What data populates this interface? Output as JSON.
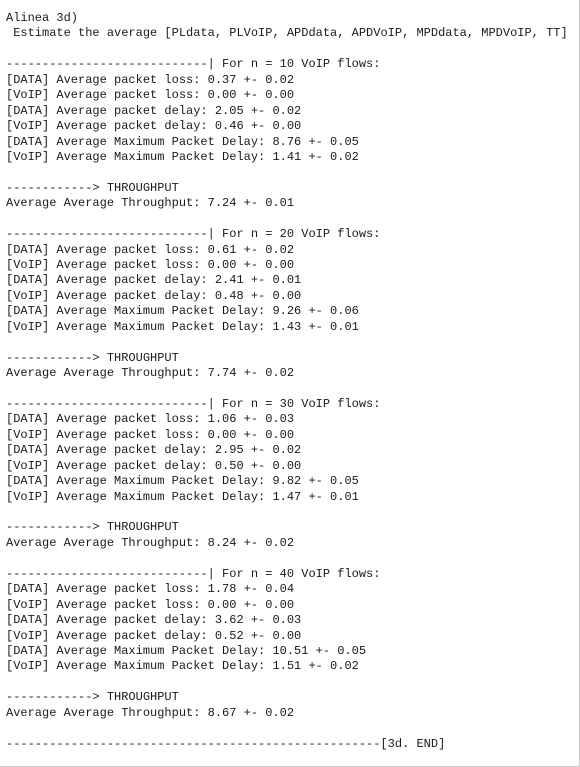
{
  "header": [
    "Alinea 3d)",
    " Estimate the average [PLdata, PLVoIP, APDdata, APDVoIP, MPDdata, MPDVoIP, TT]"
  ],
  "blocks": [
    {
      "heading": "----------------------------| For n = 10 VoIP flows:",
      "lines": [
        "[DATA] Average packet loss: 0.37 +- 0.02",
        "[VoIP] Average packet loss: 0.00 +- 0.00",
        "[DATA] Average packet delay: 2.05 +- 0.02",
        "[VoIP] Average packet delay: 0.46 +- 0.00",
        "[DATA] Average Maximum Packet Delay: 8.76 +- 0.05",
        "[VoIP] Average Maximum Packet Delay: 1.41 +- 0.02"
      ],
      "throughput_heading": "------------> THROUGHPUT",
      "throughput": "Average Average Throughput: 7.24 +- 0.01"
    },
    {
      "heading": "----------------------------| For n = 20 VoIP flows:",
      "lines": [
        "[DATA] Average packet loss: 0.61 +- 0.02",
        "[VoIP] Average packet loss: 0.00 +- 0.00",
        "[DATA] Average packet delay: 2.41 +- 0.01",
        "[VoIP] Average packet delay: 0.48 +- 0.00",
        "[DATA] Average Maximum Packet Delay: 9.26 +- 0.06",
        "[VoIP] Average Maximum Packet Delay: 1.43 +- 0.01"
      ],
      "throughput_heading": "------------> THROUGHPUT",
      "throughput": "Average Average Throughput: 7.74 +- 0.02"
    },
    {
      "heading": "----------------------------| For n = 30 VoIP flows:",
      "lines": [
        "[DATA] Average packet loss: 1.06 +- 0.03",
        "[VoIP] Average packet loss: 0.00 +- 0.00",
        "[DATA] Average packet delay: 2.95 +- 0.02",
        "[VoIP] Average packet delay: 0.50 +- 0.00",
        "[DATA] Average Maximum Packet Delay: 9.82 +- 0.05",
        "[VoIP] Average Maximum Packet Delay: 1.47 +- 0.01"
      ],
      "throughput_heading": "------------> THROUGHPUT",
      "throughput": "Average Average Throughput: 8.24 +- 0.02"
    },
    {
      "heading": "----------------------------| For n = 40 VoIP flows:",
      "lines": [
        "[DATA] Average packet loss: 1.78 +- 0.04",
        "[VoIP] Average packet loss: 0.00 +- 0.00",
        "[DATA] Average packet delay: 3.62 +- 0.03",
        "[VoIP] Average packet delay: 0.52 +- 0.00",
        "[DATA] Average Maximum Packet Delay: 10.51 +- 0.05",
        "[VoIP] Average Maximum Packet Delay: 1.51 +- 0.02"
      ],
      "throughput_heading": "------------> THROUGHPUT",
      "throughput": "Average Average Throughput: 8.67 +- 0.02"
    }
  ],
  "footer": "----------------------------------------------------[3d. END]"
}
